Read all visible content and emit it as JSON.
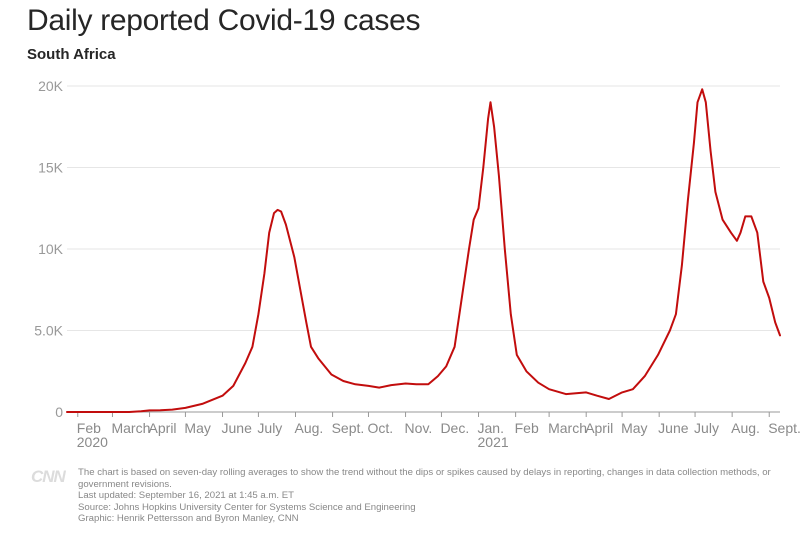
{
  "header": {
    "title": "Daily reported Covid-19 cases",
    "subtitle": "South Africa"
  },
  "footer": {
    "logo": "CNN",
    "note": "The chart is based on seven-day rolling averages to show the trend without the dips or spikes caused by delays in reporting, changes in data collection methods, or government revisions.",
    "updated": "Last updated: September 16, 2021 at 1:45 a.m. ET",
    "source": "Source: Johns Hopkins University Center for Systems Science and Engineering",
    "graphic": "Graphic: Henrik Pettersson and Byron Manley, CNN"
  },
  "colors": {
    "line": "#c20d0d",
    "grid": "#e6e6e6",
    "axis": "#999999",
    "tick_text": "#999999",
    "month_text": "#8a8a8a"
  },
  "chart_data": {
    "type": "line",
    "title": "Daily reported Covid-19 cases",
    "subtitle": "South Africa",
    "x_unit": "date",
    "ylim": [
      0,
      20000
    ],
    "yticks": [
      0,
      5000,
      10000,
      15000,
      20000
    ],
    "ytick_labels": [
      "0",
      "5.0K",
      "10K",
      "15K",
      "20K"
    ],
    "xtick_labels": [
      {
        "label": "Feb",
        "date": "2020-02-01"
      },
      {
        "label": "March",
        "date": "2020-03-01"
      },
      {
        "label": "April",
        "date": "2020-04-01"
      },
      {
        "label": "May",
        "date": "2020-05-01"
      },
      {
        "label": "June",
        "date": "2020-06-01"
      },
      {
        "label": "July",
        "date": "2020-07-01"
      },
      {
        "label": "Aug.",
        "date": "2020-08-01"
      },
      {
        "label": "Sept.",
        "date": "2020-09-01"
      },
      {
        "label": "Oct.",
        "date": "2020-10-01"
      },
      {
        "label": "Nov.",
        "date": "2020-11-01"
      },
      {
        "label": "Dec.",
        "date": "2020-12-01"
      },
      {
        "label": "Jan.",
        "date": "2021-01-01"
      },
      {
        "label": "Feb",
        "date": "2021-02-01"
      },
      {
        "label": "March",
        "date": "2021-03-01"
      },
      {
        "label": "April",
        "date": "2021-04-01"
      },
      {
        "label": "May",
        "date": "2021-05-01"
      },
      {
        "label": "June",
        "date": "2021-06-01"
      },
      {
        "label": "July",
        "date": "2021-07-01"
      },
      {
        "label": "Aug.",
        "date": "2021-08-01"
      },
      {
        "label": "Sept.",
        "date": "2021-09-01"
      }
    ],
    "year_labels": [
      {
        "label": "2020",
        "date": "2020-02-01"
      },
      {
        "label": "2021",
        "date": "2021-01-01"
      }
    ],
    "grid": true,
    "legend": "none",
    "series": [
      {
        "points": [
          [
            "2020-01-23",
            0
          ],
          [
            "2020-03-01",
            0
          ],
          [
            "2020-03-15",
            0
          ],
          [
            "2020-03-25",
            50
          ],
          [
            "2020-04-01",
            100
          ],
          [
            "2020-04-10",
            110
          ],
          [
            "2020-04-20",
            150
          ],
          [
            "2020-05-01",
            250
          ],
          [
            "2020-05-15",
            500
          ],
          [
            "2020-06-01",
            1000
          ],
          [
            "2020-06-10",
            1600
          ],
          [
            "2020-06-20",
            3000
          ],
          [
            "2020-06-26",
            4000
          ],
          [
            "2020-07-01",
            6000
          ],
          [
            "2020-07-06",
            8500
          ],
          [
            "2020-07-10",
            11000
          ],
          [
            "2020-07-14",
            12200
          ],
          [
            "2020-07-17",
            12400
          ],
          [
            "2020-07-20",
            12300
          ],
          [
            "2020-07-24",
            11500
          ],
          [
            "2020-07-31",
            9500
          ],
          [
            "2020-08-05",
            7500
          ],
          [
            "2020-08-10",
            5500
          ],
          [
            "2020-08-14",
            4000
          ],
          [
            "2020-08-20",
            3300
          ],
          [
            "2020-08-31",
            2300
          ],
          [
            "2020-09-10",
            1900
          ],
          [
            "2020-09-20",
            1700
          ],
          [
            "2020-10-01",
            1600
          ],
          [
            "2020-10-10",
            1500
          ],
          [
            "2020-10-20",
            1650
          ],
          [
            "2020-11-01",
            1750
          ],
          [
            "2020-11-10",
            1700
          ],
          [
            "2020-11-20",
            1700
          ],
          [
            "2020-11-28",
            2200
          ],
          [
            "2020-12-05",
            2800
          ],
          [
            "2020-12-12",
            4000
          ],
          [
            "2020-12-18",
            7000
          ],
          [
            "2020-12-24",
            10000
          ],
          [
            "2020-12-28",
            11800
          ],
          [
            "2021-01-01",
            12500
          ],
          [
            "2021-01-05",
            15000
          ],
          [
            "2021-01-09",
            18000
          ],
          [
            "2021-01-11",
            19000
          ],
          [
            "2021-01-14",
            17500
          ],
          [
            "2021-01-18",
            14500
          ],
          [
            "2021-01-23",
            10000
          ],
          [
            "2021-01-28",
            6000
          ],
          [
            "2021-02-02",
            3500
          ],
          [
            "2021-02-10",
            2500
          ],
          [
            "2021-02-20",
            1800
          ],
          [
            "2021-03-01",
            1400
          ],
          [
            "2021-03-15",
            1100
          ],
          [
            "2021-04-01",
            1200
          ],
          [
            "2021-04-10",
            1000
          ],
          [
            "2021-04-20",
            800
          ],
          [
            "2021-05-01",
            1200
          ],
          [
            "2021-05-10",
            1400
          ],
          [
            "2021-05-20",
            2200
          ],
          [
            "2021-05-31",
            3500
          ],
          [
            "2021-06-10",
            5000
          ],
          [
            "2021-06-15",
            6000
          ],
          [
            "2021-06-20",
            9000
          ],
          [
            "2021-06-25",
            13000
          ],
          [
            "2021-06-30",
            16500
          ],
          [
            "2021-07-03",
            19000
          ],
          [
            "2021-07-07",
            19800
          ],
          [
            "2021-07-10",
            19000
          ],
          [
            "2021-07-14",
            16000
          ],
          [
            "2021-07-18",
            13500
          ],
          [
            "2021-07-24",
            11800
          ],
          [
            "2021-07-31",
            11000
          ],
          [
            "2021-08-05",
            10500
          ],
          [
            "2021-08-08",
            11000
          ],
          [
            "2021-08-12",
            12000
          ],
          [
            "2021-08-17",
            12000
          ],
          [
            "2021-08-22",
            11000
          ],
          [
            "2021-08-27",
            8000
          ],
          [
            "2021-09-01",
            7000
          ],
          [
            "2021-09-06",
            5500
          ],
          [
            "2021-09-10",
            4700
          ]
        ]
      }
    ]
  }
}
